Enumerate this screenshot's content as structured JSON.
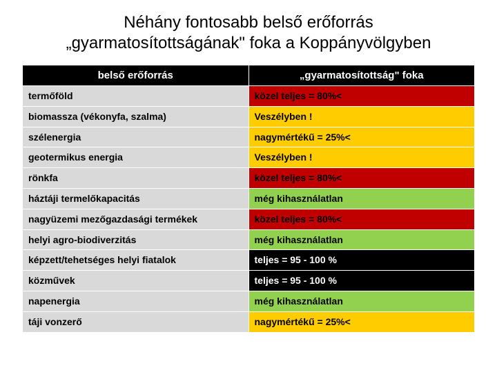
{
  "title_line1": "Néhány fontosabb belső erőforrás",
  "title_line2": "„gyarmatosítottságának\" foka a Koppányvölgyben",
  "columns": {
    "left": "belső erőforrás",
    "right": "„gyarmatosítottság\" foka"
  },
  "status_colors": {
    "red": "#c00000",
    "yellow": "#ffcc00",
    "green": "#92d050",
    "black": "#000000",
    "left_gray": "#d9d9d9",
    "header_bg": "#000000",
    "header_text": "#ffffff"
  },
  "rows": [
    {
      "resource": "termőföld",
      "status": "közel teljes = 80%<",
      "color": "#c00000"
    },
    {
      "resource": "biomassza (vékonyfa, szalma)",
      "status": "Veszélyben !",
      "color": "#ffcc00"
    },
    {
      "resource": "szélenergia",
      "status": "nagymértékű = 25%<",
      "color": "#ffcc00"
    },
    {
      "resource": "geotermikus energia",
      "status": "Veszélyben !",
      "color": "#ffcc00"
    },
    {
      "resource": "rönkfa",
      "status": "közel teljes = 80%<",
      "color": "#c00000"
    },
    {
      "resource": "háztáji termelőkapacitás",
      "status": "még kihasználatlan",
      "color": "#92d050"
    },
    {
      "resource": "nagyüzemi mezőgazdasági termékek",
      "status": "közel teljes = 80%<",
      "color": "#c00000"
    },
    {
      "resource": "helyi agro-biodiverzitás",
      "status": "még kihasználatlan",
      "color": "#92d050"
    },
    {
      "resource": "képzett/tehetséges helyi fiatalok",
      "status": "teljes = 95 - 100 %",
      "color": "#000000",
      "text": "#ffffff"
    },
    {
      "resource": "közművek",
      "status": "teljes = 95 - 100 %",
      "color": "#000000",
      "text": "#ffffff"
    },
    {
      "resource": "napenergia",
      "status": "még kihasználatlan",
      "color": "#92d050"
    },
    {
      "resource": "táji vonzerő",
      "status": "nagymértékű = 25%<",
      "color": "#ffcc00"
    }
  ]
}
